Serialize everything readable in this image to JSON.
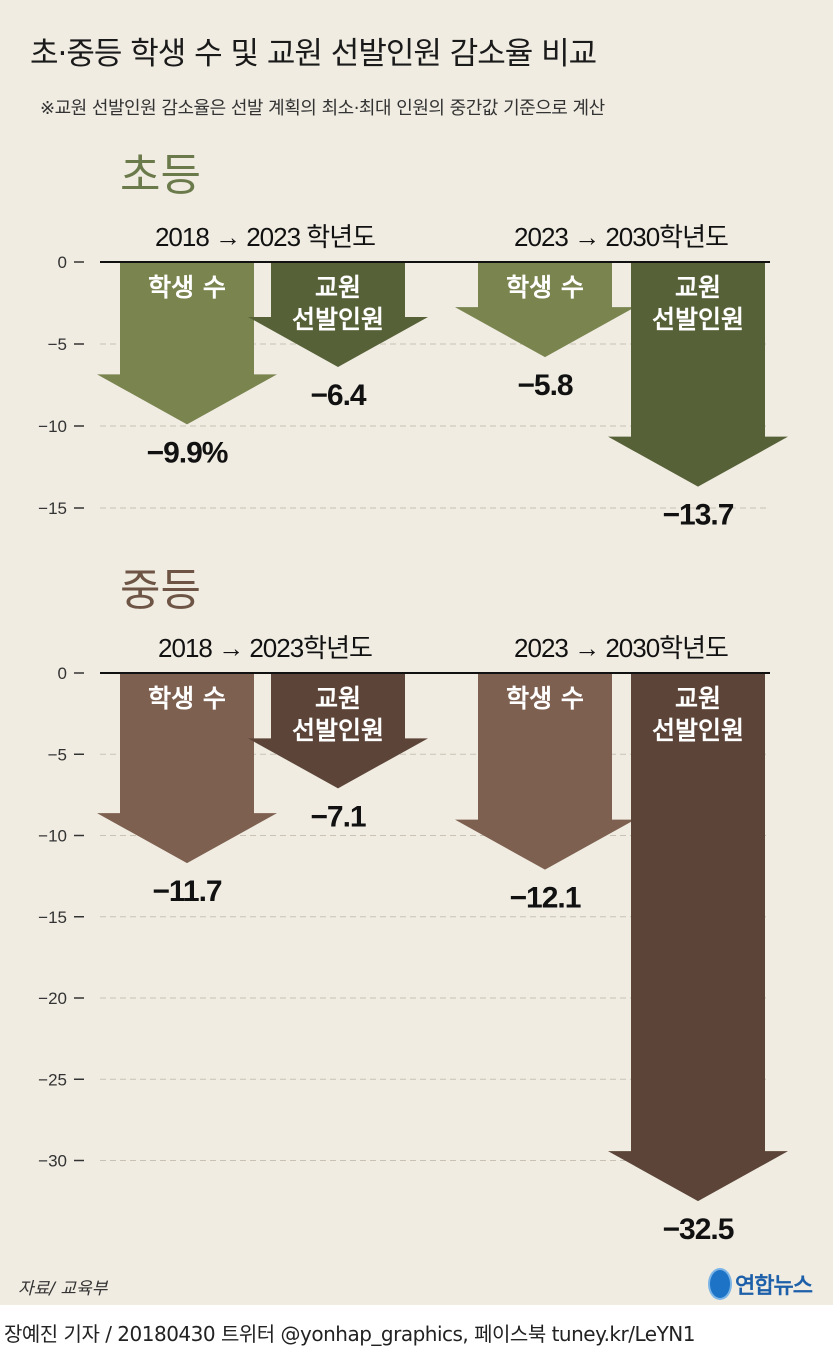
{
  "title": "초·중등 학생 수 및 교원 선발인원 감소율 비교",
  "note": "※교원 선발인원 감소율은 선발 계획의 최소·최대 인원의 중간값 기준으로 계산",
  "source": "자료/ 교육부",
  "logo": "연합뉴스",
  "credit": "장예진 기자 / 20180430 트위터 @yonhap_graphics, 페이스북 tuney.kr/LeYN1",
  "colors": {
    "background": "#f0ece2",
    "elem_student": "#7a844f",
    "elem_teacher": "#566138",
    "mid_student": "#7d6050",
    "mid_teacher": "#5c4538",
    "elem_title": "#6b7a4a",
    "mid_title": "#6e5444"
  },
  "chart_data": [
    {
      "type": "bar",
      "title": "초등",
      "periods": [
        "2018 → 2023 학년도",
        "2023 → 2030학년도"
      ],
      "ylim": [
        -15,
        0
      ],
      "yticks": [
        "0",
        "−5",
        "−10",
        "−15"
      ],
      "ytick_values": [
        0,
        -5,
        -10,
        -15
      ],
      "grid": true,
      "bars": [
        {
          "period": 0,
          "label": "학생 수",
          "value": -9.9,
          "value_label": "−9.9%",
          "color": "#7a844f"
        },
        {
          "period": 0,
          "label": "교원\n선발인원",
          "value": -6.4,
          "value_label": "−6.4",
          "color": "#566138"
        },
        {
          "period": 1,
          "label": "학생 수",
          "value": -5.8,
          "value_label": "−5.8",
          "color": "#7a844f"
        },
        {
          "period": 1,
          "label": "교원\n선발인원",
          "value": -13.7,
          "value_label": "−13.7",
          "color": "#566138"
        }
      ]
    },
    {
      "type": "bar",
      "title": "중등",
      "periods": [
        "2018 → 2023학년도",
        "2023 → 2030학년도"
      ],
      "ylim": [
        -30,
        0
      ],
      "yticks": [
        "0",
        "−5",
        "−10",
        "−15",
        "−20",
        "−25",
        "−30"
      ],
      "ytick_values": [
        0,
        -5,
        -10,
        -15,
        -20,
        -25,
        -30
      ],
      "grid": true,
      "bars": [
        {
          "period": 0,
          "label": "학생 수",
          "value": -11.7,
          "value_label": "−11.7",
          "color": "#7d6050"
        },
        {
          "period": 0,
          "label": "교원\n선발인원",
          "value": -7.1,
          "value_label": "−7.1",
          "color": "#5c4538"
        },
        {
          "period": 1,
          "label": "학생 수",
          "value": -12.1,
          "value_label": "−12.1",
          "color": "#7d6050"
        },
        {
          "period": 1,
          "label": "교원\n선발인원",
          "value": -32.5,
          "value_label": "−32.5",
          "color": "#5c4538"
        }
      ]
    }
  ]
}
